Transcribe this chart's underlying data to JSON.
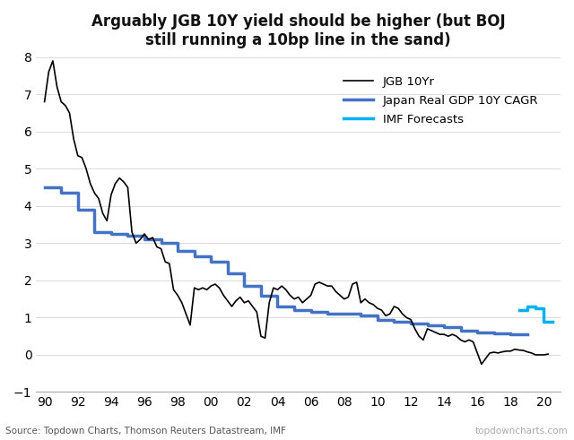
{
  "title": "Arguably JGB 10Y yield should be higher (but BOJ\nstill running a 10bp line in the sand)",
  "source_left": "Source: Topdown Charts, Thomson Reuters Datastream, IMF",
  "source_right": "topdowncharts.com",
  "ylim": [
    -1,
    8
  ],
  "yticks": [
    -1,
    0,
    1,
    2,
    3,
    4,
    5,
    6,
    7,
    8
  ],
  "legend": {
    "JGB 10Yr": {
      "color": "#000000",
      "lw": 1.2
    },
    "Japan Real GDP 10Y CAGR": {
      "color": "#4472C4",
      "lw": 2.5
    },
    "IMF Forecasts": {
      "color": "#00B0F0",
      "lw": 2.5
    }
  },
  "jgb_x": [
    1990,
    1990.25,
    1990.5,
    1990.75,
    1991,
    1991.25,
    1991.5,
    1991.75,
    1992,
    1992.25,
    1992.5,
    1992.75,
    1993,
    1993.25,
    1993.5,
    1993.75,
    1994,
    1994.25,
    1994.5,
    1994.75,
    1995,
    1995.25,
    1995.5,
    1995.75,
    1996,
    1996.25,
    1996.5,
    1996.75,
    1997,
    1997.25,
    1997.5,
    1997.75,
    1998,
    1998.25,
    1998.5,
    1998.75,
    1999,
    1999.25,
    1999.5,
    1999.75,
    2000,
    2000.25,
    2000.5,
    2000.75,
    2001,
    2001.25,
    2001.5,
    2001.75,
    2002,
    2002.25,
    2002.5,
    2002.75,
    2003,
    2003.25,
    2003.5,
    2003.75,
    2004,
    2004.25,
    2004.5,
    2004.75,
    2005,
    2005.25,
    2005.5,
    2005.75,
    2006,
    2006.25,
    2006.5,
    2006.75,
    2007,
    2007.25,
    2007.5,
    2007.75,
    2008,
    2008.25,
    2008.5,
    2008.75,
    2009,
    2009.25,
    2009.5,
    2009.75,
    2010,
    2010.25,
    2010.5,
    2010.75,
    2011,
    2011.25,
    2011.5,
    2011.75,
    2012,
    2012.25,
    2012.5,
    2012.75,
    2013,
    2013.25,
    2013.5,
    2013.75,
    2014,
    2014.25,
    2014.5,
    2014.75,
    2015,
    2015.25,
    2015.5,
    2015.75,
    2016,
    2016.25,
    2016.5,
    2016.75,
    2017,
    2017.25,
    2017.5,
    2017.75,
    2018,
    2018.25,
    2018.5,
    2018.75,
    2019,
    2019.25,
    2019.5,
    2019.75,
    2020,
    2020.25
  ],
  "jgb_y": [
    6.8,
    7.6,
    7.9,
    7.2,
    6.8,
    6.7,
    6.5,
    5.8,
    5.35,
    5.3,
    5.0,
    4.6,
    4.35,
    4.2,
    3.8,
    3.6,
    4.3,
    4.6,
    4.75,
    4.65,
    4.5,
    3.3,
    3.0,
    3.1,
    3.25,
    3.1,
    3.15,
    2.9,
    2.85,
    2.5,
    2.45,
    1.75,
    1.6,
    1.4,
    1.1,
    0.8,
    1.8,
    1.75,
    1.8,
    1.75,
    1.85,
    1.9,
    1.8,
    1.6,
    1.45,
    1.3,
    1.45,
    1.55,
    1.4,
    1.45,
    1.3,
    1.15,
    0.5,
    0.45,
    1.4,
    1.8,
    1.75,
    1.85,
    1.75,
    1.6,
    1.5,
    1.55,
    1.4,
    1.5,
    1.6,
    1.9,
    1.95,
    1.9,
    1.85,
    1.85,
    1.7,
    1.6,
    1.5,
    1.55,
    1.9,
    1.95,
    1.4,
    1.5,
    1.4,
    1.35,
    1.25,
    1.2,
    1.05,
    1.1,
    1.3,
    1.25,
    1.1,
    1.0,
    0.95,
    0.7,
    0.5,
    0.4,
    0.7,
    0.65,
    0.6,
    0.55,
    0.55,
    0.5,
    0.55,
    0.5,
    0.4,
    0.35,
    0.4,
    0.35,
    0.05,
    -0.25,
    -0.1,
    0.05,
    0.07,
    0.05,
    0.08,
    0.1,
    0.1,
    0.15,
    0.13,
    0.12,
    0.08,
    0.05,
    0.0,
    0.0,
    0.0,
    0.02
  ],
  "gdp_x": [
    1990,
    1991,
    1992,
    1993,
    1994,
    1995,
    1996,
    1997,
    1998,
    1999,
    2000,
    2001,
    2002,
    2003,
    2004,
    2005,
    2006,
    2007,
    2008,
    2009,
    2010,
    2011,
    2012,
    2013,
    2014,
    2015,
    2016,
    2017,
    2018,
    2019
  ],
  "gdp_y": [
    4.5,
    4.35,
    3.9,
    3.3,
    3.25,
    3.2,
    3.1,
    3.0,
    2.8,
    2.65,
    2.5,
    2.2,
    1.85,
    1.6,
    1.3,
    1.2,
    1.15,
    1.1,
    1.1,
    1.05,
    0.95,
    0.9,
    0.85,
    0.8,
    0.75,
    0.65,
    0.6,
    0.57,
    0.55,
    0.55
  ],
  "imf_x": [
    2018.5,
    2019,
    2019.5,
    2020,
    2020.25,
    2020.5
  ],
  "imf_y": [
    1.2,
    1.3,
    1.25,
    0.9,
    0.9,
    0.9
  ],
  "xticks": [
    1990,
    1992,
    1994,
    1996,
    1998,
    2000,
    2002,
    2004,
    2006,
    2008,
    2010,
    2012,
    2014,
    2016,
    2018,
    2020
  ],
  "xticklabels": [
    "90",
    "92",
    "94",
    "96",
    "98",
    "00",
    "02",
    "04",
    "06",
    "08",
    "10",
    "12",
    "14",
    "16",
    "18",
    "20"
  ]
}
